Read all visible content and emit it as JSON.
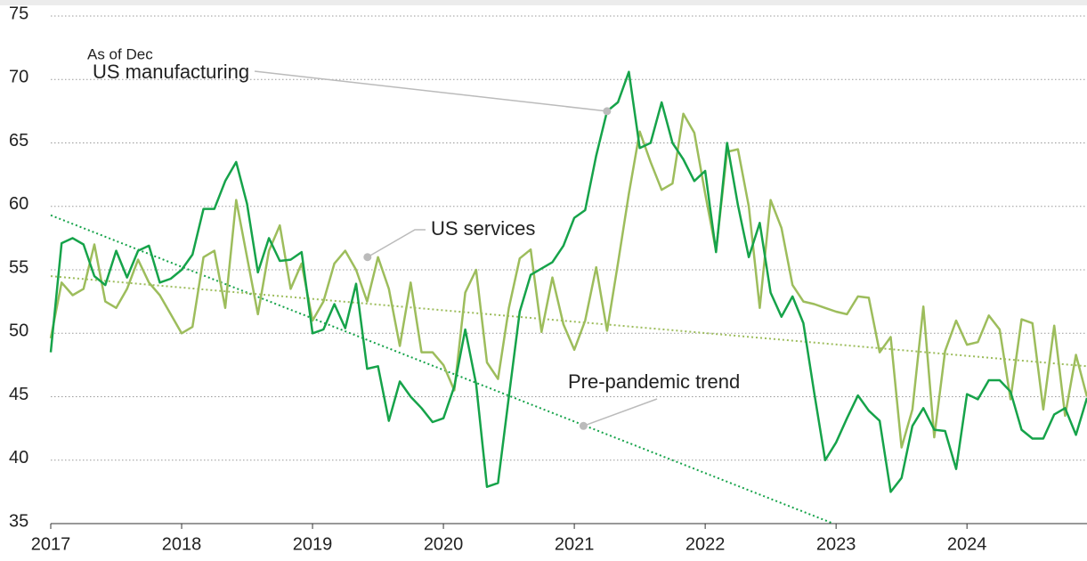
{
  "chart_data": {
    "type": "line",
    "x": [
      2017,
      2017.083,
      2017.167,
      2017.25,
      2017.333,
      2017.417,
      2017.5,
      2017.583,
      2017.667,
      2017.75,
      2017.833,
      2017.917,
      2018,
      2018.083,
      2018.167,
      2018.25,
      2018.333,
      2018.417,
      2018.5,
      2018.583,
      2018.667,
      2018.75,
      2018.833,
      2018.917,
      2019,
      2019.083,
      2019.167,
      2019.25,
      2019.333,
      2019.417,
      2019.5,
      2019.583,
      2019.667,
      2019.75,
      2019.833,
      2019.917,
      2020,
      2020.083,
      2020.167,
      2020.25,
      2020.333,
      2020.417,
      2020.5,
      2020.583,
      2020.667,
      2020.75,
      2020.833,
      2020.917,
      2021,
      2021.083,
      2021.167,
      2021.25,
      2021.333,
      2021.417,
      2021.5,
      2021.583,
      2021.667,
      2021.75,
      2021.833,
      2021.917,
      2022,
      2022.083,
      2022.167,
      2022.25,
      2022.333,
      2022.417,
      2022.5,
      2022.583,
      2022.667,
      2022.75,
      2022.833,
      2022.917,
      2023,
      2023.083,
      2023.167,
      2023.25,
      2023.333,
      2023.417,
      2023.5,
      2023.583,
      2023.667,
      2023.75,
      2023.833,
      2023.917,
      2024,
      2024.083,
      2024.167,
      2024.25,
      2024.333,
      2024.417,
      2024.5,
      2024.583,
      2024.667,
      2024.75,
      2024.833,
      2024.917
    ],
    "series": [
      {
        "name": "US services",
        "color": "#9dbd5c",
        "values": [
          49.6,
          54.0,
          53.0,
          53.5,
          57.0,
          52.5,
          52.0,
          53.5,
          55.8,
          54.0,
          53.0,
          51.5,
          50.0,
          50.5,
          56.0,
          56.5,
          52.0,
          60.5,
          56.0,
          51.5,
          56.5,
          58.5,
          53.5,
          55.5,
          51.0,
          52.5,
          55.5,
          56.5,
          55.0,
          52.5,
          56.0,
          53.5,
          49.0,
          54.0,
          48.5,
          48.5,
          47.5,
          45.5,
          53.2,
          55.0,
          47.7,
          46.4,
          52.0,
          55.9,
          56.6,
          50.1,
          54.4,
          50.7,
          48.7,
          51.0,
          55.2,
          50.2,
          55.5,
          61.0,
          65.9,
          63.5,
          61.3,
          61.8,
          67.3,
          65.8,
          61.0,
          56.5,
          64.3,
          64.5,
          60.0,
          52.0,
          60.5,
          58.3,
          53.8,
          52.5,
          52.3,
          52.0,
          51.7,
          51.5,
          52.9,
          52.8,
          48.5,
          49.7,
          41.0,
          44.0,
          52.1,
          41.8,
          48.6,
          51.0,
          49.1,
          49.3,
          51.4,
          50.3,
          44.8,
          51.1,
          50.8,
          44.0,
          50.6,
          43.5,
          48.3,
          45.0
        ]
      },
      {
        "name": "US manufacturing",
        "color": "#16a34a",
        "values": [
          48.5,
          57.1,
          57.5,
          57.0,
          54.5,
          53.8,
          56.5,
          54.4,
          56.5,
          56.9,
          54.0,
          54.3,
          55.0,
          56.2,
          59.8,
          59.8,
          62.0,
          63.5,
          60.2,
          54.8,
          57.5,
          55.7,
          55.8,
          56.4,
          50.0,
          50.3,
          52.3,
          50.4,
          53.9,
          47.2,
          47.4,
          43.1,
          46.2,
          45.0,
          44.1,
          43.0,
          43.3,
          45.8,
          50.3,
          46.0,
          37.9,
          38.2,
          45.0,
          51.7,
          54.6,
          55.1,
          55.6,
          56.9,
          59.1,
          59.7,
          64.0,
          67.5,
          68.2,
          70.6,
          64.6,
          65.0,
          68.2,
          65.0,
          63.7,
          62.0,
          62.8,
          56.4,
          65.0,
          60.1,
          56.0,
          58.7,
          53.2,
          51.3,
          52.9,
          50.8,
          45.3,
          40.0,
          41.4,
          43.3,
          45.1,
          43.9,
          43.1,
          37.5,
          38.6,
          42.7,
          44.1,
          42.4,
          42.3,
          39.3,
          45.2,
          44.8,
          46.3,
          46.3,
          45.4,
          42.4,
          41.7,
          41.7,
          43.6,
          44.1,
          42.0,
          44.9
        ]
      }
    ],
    "trends": [
      {
        "color": "#16a34a",
        "x": [
          2017,
          2022.98
        ],
        "values": [
          59.3,
          35.0
        ]
      },
      {
        "color": "#9dbd5c",
        "x": [
          2017,
          2024.917
        ],
        "values": [
          54.5,
          47.4
        ]
      }
    ],
    "annotations": [
      {
        "text": "US manufacturing",
        "x": 2021.25,
        "y": 67.5
      },
      {
        "text": "US services",
        "x": 2019.42,
        "y": 56.0
      },
      {
        "text": "Pre-pandemic trend",
        "x": 2021.07,
        "y": 42.7
      }
    ],
    "note": "As of Dec",
    "xlim": [
      2017,
      2024.917
    ],
    "xticks": [
      2017,
      2018,
      2019,
      2020,
      2021,
      2022,
      2023,
      2024
    ],
    "ylim": [
      35,
      75
    ],
    "yticks": [
      35,
      40,
      45,
      50,
      55,
      60,
      65,
      70,
      75
    ],
    "grid": true
  }
}
